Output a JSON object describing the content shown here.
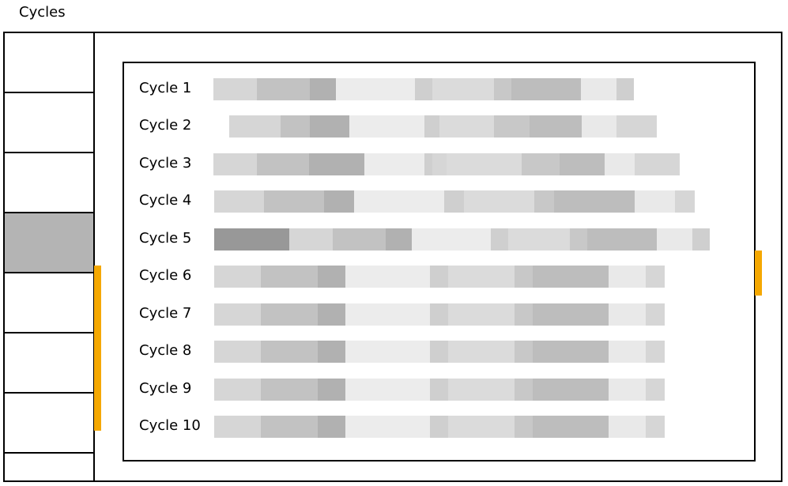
{
  "title": "Cycles",
  "colors": {
    "accent": "#f5a800",
    "selected": "#b4b4b4",
    "shades": {
      "a": "#d6d6d6",
      "b": "#c2c2c2",
      "c": "#b1b1b1",
      "d": "#ececec",
      "e": "#cfcfcf",
      "f": "#dbdbdb",
      "g": "#c8c8c8",
      "h": "#bdbdbd",
      "i": "#e9e9e9",
      "j": "#989898"
    }
  },
  "sidebar": {
    "cell_count": 8,
    "selected_index": 3
  },
  "cycles": [
    {
      "label": "Cycle 1"
    },
    {
      "label": "Cycle 2"
    },
    {
      "label": "Cycle 3"
    },
    {
      "label": "Cycle 4"
    },
    {
      "label": "Cycle 5"
    },
    {
      "label": "Cycle 6"
    },
    {
      "label": "Cycle 7"
    },
    {
      "label": "Cycle 8"
    },
    {
      "label": "Cycle 9"
    },
    {
      "label": "Cycle 10"
    }
  ]
}
